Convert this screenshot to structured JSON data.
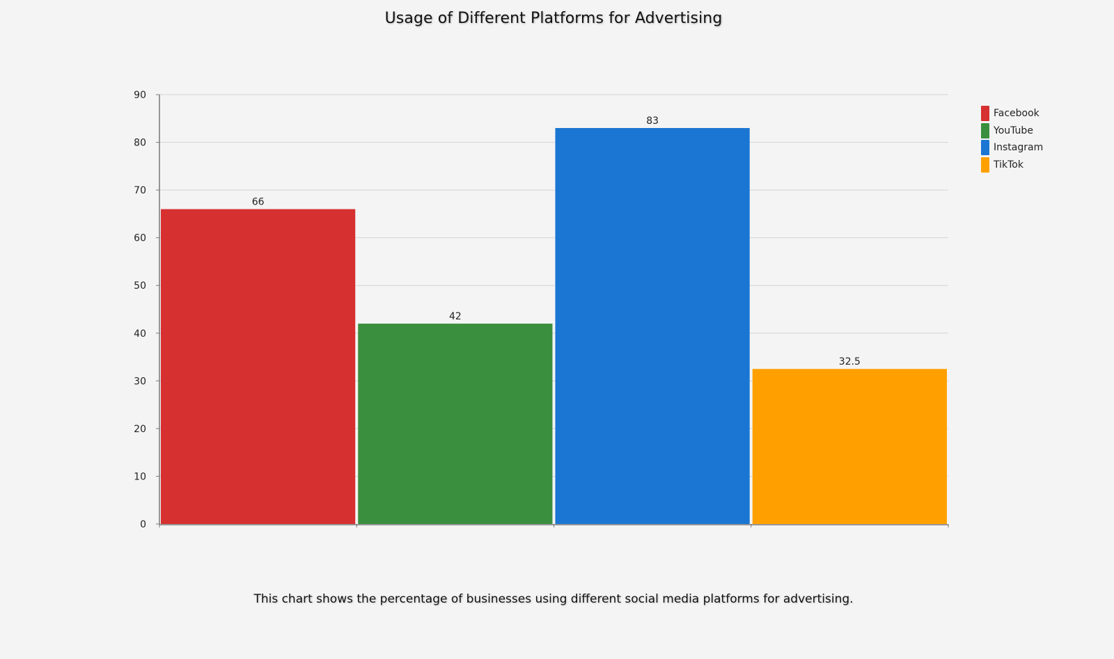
{
  "chart_data": {
    "type": "bar",
    "title": "Usage of Different Platforms for Advertising",
    "caption": "This chart shows the percentage of businesses using different social media platforms for advertising.",
    "categories": [
      "Facebook",
      "YouTube",
      "Instagram",
      "TikTok"
    ],
    "values": [
      66,
      42,
      83,
      32.5
    ],
    "value_labels": [
      "66",
      "42",
      "83",
      "32.5"
    ],
    "colors": [
      "#d63031",
      "#3a8f3e",
      "#1a76d2",
      "#ffa000"
    ],
    "ylim": [
      0,
      90
    ],
    "yticks": [
      0,
      10,
      20,
      30,
      40,
      50,
      60,
      70,
      80,
      90
    ],
    "xlabel": "",
    "ylabel": "",
    "grid": true,
    "legend_position": "right"
  }
}
